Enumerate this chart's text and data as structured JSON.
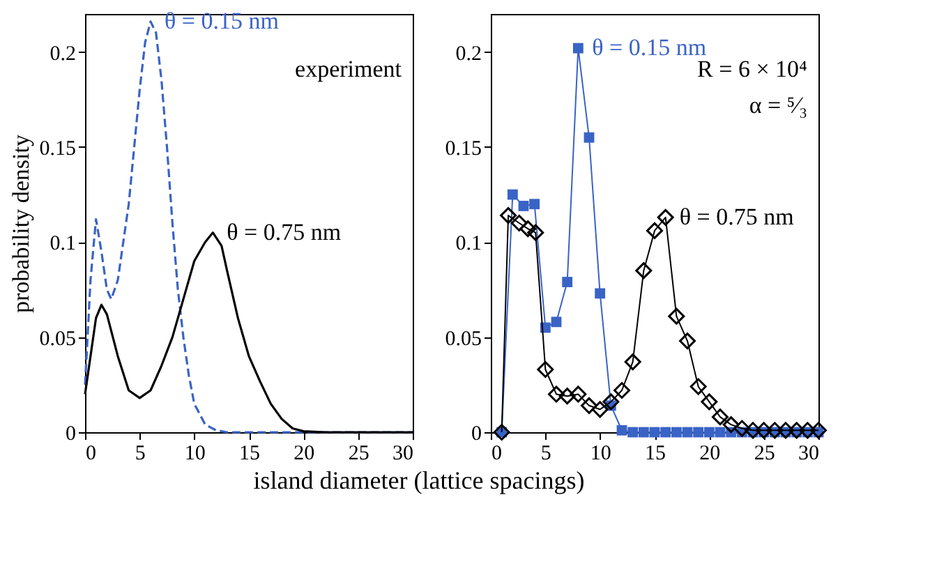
{
  "chart_data": [
    {
      "type": "line",
      "xlabel": "island diameter (lattice spacings)",
      "ylabel": "probability density",
      "annotations": [
        "experiment"
      ],
      "xlim": [
        0,
        30
      ],
      "ylim": [
        0,
        0.22
      ],
      "xticks": [
        0,
        5,
        10,
        15,
        20,
        25,
        30
      ],
      "yticks": [
        0,
        0.05,
        0.1,
        0.15,
        0.2
      ],
      "grid": false,
      "marker": "none",
      "series": [
        {
          "name": "θ = 0.15 nm",
          "color": "#3a63c6",
          "line_style": "dashed",
          "x": [
            0,
            0.5,
            1,
            1.5,
            2,
            2.4,
            3,
            4,
            5,
            5.5,
            6,
            6.5,
            7,
            7.5,
            8,
            8.5,
            9,
            9.5,
            10,
            11,
            12,
            13,
            30
          ],
          "values": [
            0.025,
            0.08,
            0.112,
            0.095,
            0.075,
            0.07,
            0.08,
            0.12,
            0.18,
            0.205,
            0.216,
            0.21,
            0.185,
            0.15,
            0.11,
            0.075,
            0.05,
            0.03,
            0.015,
            0.004,
            0.001,
            0,
            0
          ]
        },
        {
          "name": "θ = 0.75 nm",
          "color": "#000000",
          "line_style": "solid",
          "x": [
            0,
            0.5,
            1,
            1.5,
            2,
            3,
            4,
            5,
            6,
            7,
            8,
            9,
            10,
            11,
            11.7,
            12.5,
            13,
            14,
            15,
            16,
            17,
            18,
            19,
            20,
            22,
            30
          ],
          "values": [
            0.02,
            0.04,
            0.06,
            0.067,
            0.062,
            0.04,
            0.022,
            0.018,
            0.022,
            0.035,
            0.05,
            0.07,
            0.09,
            0.1,
            0.105,
            0.098,
            0.085,
            0.06,
            0.04,
            0.027,
            0.015,
            0.007,
            0.002,
            0.0005,
            0,
            0
          ]
        }
      ]
    },
    {
      "type": "line",
      "annotations": [
        "R = 6 × 10⁴",
        "α = ⁵⁄₃"
      ],
      "xlim": [
        0,
        30
      ],
      "ylim": [
        0,
        0.22
      ],
      "xticks": [
        0,
        5,
        10,
        15,
        20,
        25,
        30
      ],
      "yticks": [
        0,
        0.05,
        0.1,
        0.15,
        0.2
      ],
      "grid": false,
      "series": [
        {
          "name": "θ = 0.15 nm",
          "color": "#3a63c6",
          "marker": "square",
          "x": [
            1,
            2,
            3,
            4,
            5,
            6,
            7,
            8,
            9,
            10,
            11,
            12,
            13,
            14,
            15,
            16,
            17,
            18,
            19,
            20,
            21,
            22,
            23,
            24,
            25,
            26,
            27,
            28,
            29,
            30
          ],
          "values": [
            0,
            0.125,
            0.119,
            0.12,
            0.055,
            0.058,
            0.079,
            0.202,
            0.155,
            0.073,
            0.014,
            0.001,
            0,
            0,
            0,
            0,
            0,
            0,
            0,
            0,
            0,
            0,
            0,
            0,
            0,
            0,
            0,
            0,
            0,
            0
          ]
        },
        {
          "name": "θ = 0.75 nm",
          "color": "#000000",
          "marker": "diamond",
          "x": [
            1,
            1.6,
            2.6,
            3.4,
            4.1,
            5,
            6,
            7,
            8,
            9,
            10,
            11,
            12,
            13,
            14,
            15,
            16,
            17,
            18,
            19,
            20,
            21,
            22,
            23,
            24,
            25,
            26,
            27,
            28,
            29,
            30
          ],
          "values": [
            0,
            0.114,
            0.11,
            0.107,
            0.105,
            0.033,
            0.02,
            0.019,
            0.02,
            0.014,
            0.012,
            0.016,
            0.022,
            0.037,
            0.085,
            0.106,
            0.113,
            0.061,
            0.048,
            0.024,
            0.016,
            0.008,
            0.004,
            0.002,
            0.001,
            0.001,
            0.001,
            0.001,
            0.001,
            0.001,
            0.001
          ]
        }
      ]
    }
  ]
}
